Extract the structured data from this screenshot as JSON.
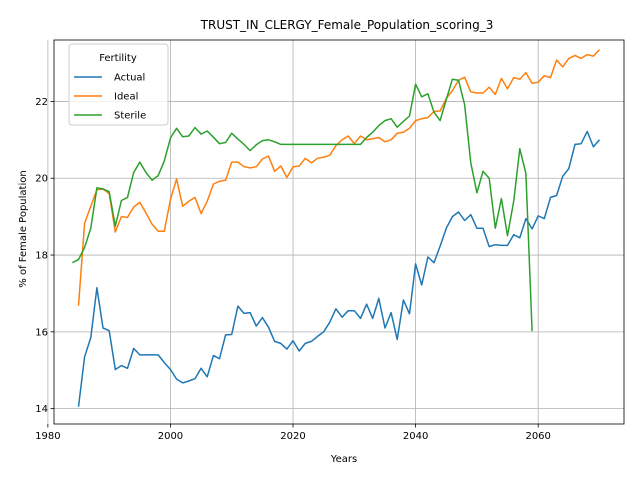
{
  "chart_data": {
    "type": "line",
    "title": "TRUST_IN_CLERGY_Female_Population_scoring_3",
    "xlabel": "Years",
    "ylabel": "% of Female Population",
    "xlim": [
      1981,
      2074
    ],
    "ylim": [
      13.6,
      23.6
    ],
    "xticks": [
      1980,
      2000,
      2020,
      2040,
      2060
    ],
    "yticks": [
      14,
      16,
      18,
      20,
      22
    ],
    "grid": true,
    "legend": {
      "title": "Fertility",
      "placement": "top-left"
    },
    "series": [
      {
        "name": "Actual",
        "color": "#1f77b4",
        "x": [
          1985,
          1986,
          1987,
          1988,
          1989,
          1990,
          1991,
          1992,
          1993,
          1994,
          1995,
          1996,
          1997,
          1998,
          1999,
          2000,
          2001,
          2002,
          2003,
          2004,
          2005,
          2006,
          2007,
          2008,
          2009,
          2010,
          2011,
          2012,
          2013,
          2014,
          2015,
          2016,
          2017,
          2018,
          2019,
          2020,
          2021,
          2022,
          2023,
          2024,
          2025,
          2026,
          2027,
          2028,
          2029,
          2030,
          2031,
          2032,
          2033,
          2034,
          2035,
          2036,
          2037,
          2038,
          2039,
          2040,
          2041,
          2042,
          2043,
          2044,
          2045,
          2046,
          2047,
          2048,
          2049,
          2050,
          2051,
          2052,
          2053,
          2054,
          2055,
          2056,
          2057,
          2058,
          2059,
          2060,
          2061,
          2062,
          2063,
          2064,
          2065,
          2066,
          2067,
          2068,
          2069,
          2070
        ],
        "y": [
          14.05,
          15.35,
          15.85,
          17.15,
          16.1,
          16.03,
          15.02,
          15.12,
          15.05,
          15.57,
          15.4,
          15.4,
          15.4,
          15.4,
          15.2,
          15.02,
          14.77,
          14.67,
          14.72,
          14.78,
          15.05,
          14.83,
          15.38,
          15.3,
          15.92,
          15.93,
          16.67,
          16.48,
          16.5,
          16.15,
          16.37,
          16.12,
          15.75,
          15.7,
          15.55,
          15.77,
          15.5,
          15.7,
          15.75,
          15.88,
          16.0,
          16.25,
          16.6,
          16.38,
          16.55,
          16.55,
          16.35,
          16.72,
          16.35,
          16.87,
          16.1,
          16.5,
          15.8,
          16.83,
          16.47,
          17.77,
          17.22,
          17.95,
          17.8,
          18.23,
          18.7,
          19.0,
          19.12,
          18.9,
          19.05,
          18.7,
          18.7,
          18.22,
          18.27,
          18.25,
          18.25,
          18.53,
          18.45,
          18.95,
          18.68,
          19.02,
          18.95,
          19.5,
          19.55,
          20.05,
          20.25,
          20.88,
          20.9,
          21.22,
          20.82,
          21.0
        ]
      },
      {
        "name": "Ideal",
        "color": "#ff7f0e",
        "x": [
          1985,
          1986,
          1987,
          1988,
          1989,
          1990,
          1991,
          1992,
          1993,
          1994,
          1995,
          1996,
          1997,
          1998,
          1999,
          2000,
          2001,
          2002,
          2003,
          2004,
          2005,
          2006,
          2007,
          2008,
          2009,
          2010,
          2011,
          2012,
          2013,
          2014,
          2015,
          2016,
          2017,
          2018,
          2019,
          2020,
          2021,
          2022,
          2023,
          2024,
          2025,
          2026,
          2027,
          2028,
          2029,
          2030,
          2031,
          2032,
          2033,
          2034,
          2035,
          2036,
          2037,
          2038,
          2039,
          2040,
          2041,
          2042,
          2043,
          2044,
          2045,
          2046,
          2047,
          2048,
          2049,
          2050,
          2051,
          2052,
          2053,
          2054,
          2055,
          2056,
          2057,
          2058,
          2059,
          2060,
          2061,
          2062,
          2063,
          2064,
          2065,
          2066,
          2067,
          2068,
          2069,
          2070
        ],
        "y": [
          16.68,
          18.83,
          19.27,
          19.7,
          19.72,
          19.6,
          18.6,
          19.0,
          18.98,
          19.25,
          19.37,
          19.1,
          18.8,
          18.62,
          18.62,
          19.45,
          19.98,
          19.27,
          19.4,
          19.5,
          19.08,
          19.4,
          19.85,
          19.92,
          19.95,
          20.42,
          20.42,
          20.3,
          20.27,
          20.3,
          20.5,
          20.58,
          20.18,
          20.32,
          20.02,
          20.3,
          20.32,
          20.52,
          20.4,
          20.52,
          20.55,
          20.6,
          20.85,
          21.0,
          21.1,
          20.9,
          21.1,
          21.0,
          21.03,
          21.06,
          20.95,
          21.0,
          21.17,
          21.2,
          21.3,
          21.5,
          21.55,
          21.58,
          21.74,
          21.75,
          22.08,
          22.28,
          22.55,
          22.63,
          22.25,
          22.22,
          22.22,
          22.37,
          22.18,
          22.6,
          22.33,
          22.62,
          22.58,
          22.75,
          22.47,
          22.5,
          22.67,
          22.62,
          23.08,
          22.9,
          23.12,
          23.2,
          23.12,
          23.22,
          23.18,
          23.35
        ]
      },
      {
        "name": "Sterile",
        "color": "#2ca02c",
        "x": [
          1984,
          1985,
          1986,
          1987,
          1988,
          1989,
          1990,
          1991,
          1992,
          1993,
          1994,
          1995,
          1996,
          1997,
          1998,
          1999,
          2000,
          2001,
          2002,
          2003,
          2004,
          2005,
          2006,
          2007,
          2008,
          2009,
          2010,
          2011,
          2012,
          2013,
          2014,
          2015,
          2016,
          2017,
          2018,
          2019,
          2020,
          2021,
          2022,
          2023,
          2024,
          2025,
          2026,
          2027,
          2028,
          2029,
          2030,
          2031,
          2032,
          2033,
          2034,
          2035,
          2036,
          2037,
          2038,
          2039,
          2040,
          2041,
          2042,
          2043,
          2044,
          2045,
          2046,
          2047,
          2048,
          2049,
          2050,
          2051,
          2052,
          2053,
          2054,
          2055,
          2056,
          2057,
          2058,
          2059
        ],
        "y": [
          17.8,
          17.88,
          18.2,
          18.7,
          19.75,
          19.72,
          19.65,
          18.75,
          19.42,
          19.5,
          20.15,
          20.42,
          20.15,
          19.95,
          20.07,
          20.45,
          21.05,
          21.3,
          21.08,
          21.1,
          21.32,
          21.15,
          21.23,
          21.07,
          20.9,
          20.93,
          21.17,
          21.02,
          20.88,
          20.72,
          20.87,
          20.98,
          21.0,
          20.95,
          20.88,
          20.88,
          20.88,
          20.88,
          20.88,
          20.88,
          20.88,
          20.88,
          20.88,
          20.88,
          20.88,
          20.88,
          20.88,
          20.88,
          21.06,
          21.2,
          21.37,
          21.5,
          21.55,
          21.33,
          21.48,
          21.62,
          22.45,
          22.12,
          22.2,
          21.72,
          21.5,
          22.05,
          22.58,
          22.55,
          21.92,
          20.4,
          19.62,
          20.18,
          20.0,
          18.7,
          19.47,
          18.5,
          19.4,
          20.77,
          20.12,
          16.02
        ]
      }
    ]
  }
}
